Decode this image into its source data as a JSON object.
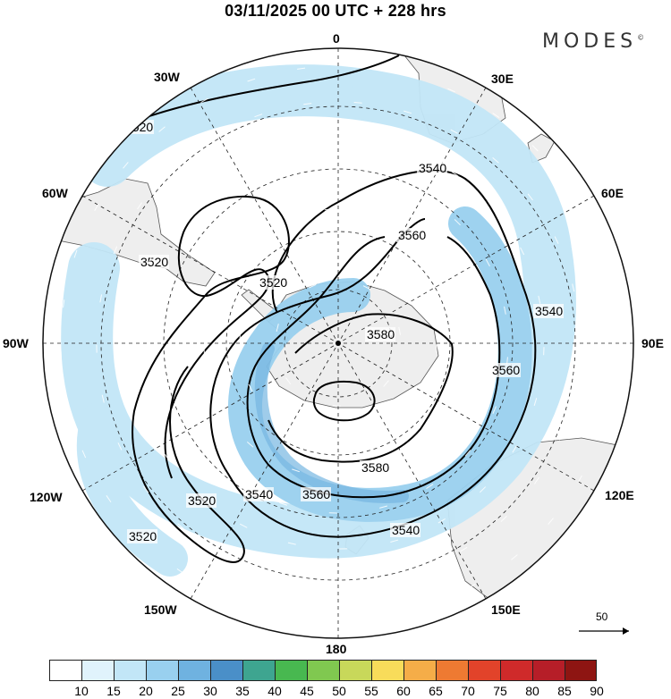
{
  "title": "03/11/2025  00 UTC  + 228 hrs",
  "brand": "MODES",
  "brand_mark": "©",
  "longitudes": {
    "lon_0": "0",
    "lon_30e": "30E",
    "lon_60e": "60E",
    "lon_90e": "90E",
    "lon_120e": "120E",
    "lon_150e": "150E",
    "lon_180": "180",
    "lon_150w": "150W",
    "lon_120w": "120W",
    "lon_90w": "90W",
    "lon_60w": "60W",
    "lon_30w": "30W"
  },
  "contours": [
    {
      "value": "3520",
      "label": "3520"
    },
    {
      "value": "3540",
      "label": "3540"
    },
    {
      "value": "3560",
      "label": "3560"
    },
    {
      "value": "3580",
      "label": "3580"
    }
  ],
  "reference_vector": "50",
  "colorbar": {
    "labels": [
      "10",
      "15",
      "20",
      "25",
      "30",
      "35",
      "40",
      "45",
      "50",
      "55",
      "60",
      "65",
      "70",
      "75",
      "80",
      "85",
      "90"
    ],
    "colors": [
      "#ffffff",
      "#e0f3fc",
      "#c2e6f7",
      "#99d0ef",
      "#6fb2e0",
      "#4a8fc8",
      "#3ea590",
      "#48b850",
      "#80c850",
      "#c8d85a",
      "#f8dc5a",
      "#f5ad48",
      "#ee7a32",
      "#e2432a",
      "#cf2a2a",
      "#b61e28",
      "#8e1512"
    ]
  }
}
